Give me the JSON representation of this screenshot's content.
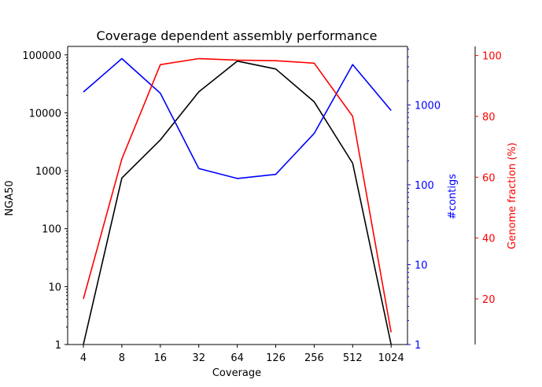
{
  "chart_data": {
    "type": "line",
    "title": "Coverage dependent assembly performance",
    "xlabel": "Coverage",
    "categories": [
      "4",
      "8",
      "16",
      "32",
      "64",
      "126",
      "256",
      "512",
      "1024"
    ],
    "axes": {
      "left": {
        "label": "NGA50",
        "scale": "log",
        "range": [
          1,
          140000
        ],
        "ticks": [
          1,
          10,
          100,
          1000,
          10000,
          100000
        ],
        "tick_labels": [
          "1",
          "10",
          "100",
          "1000",
          "10000",
          "100000"
        ],
        "color": "#000000"
      },
      "right": {
        "label": "#contigs",
        "scale": "log",
        "range": [
          1,
          5400
        ],
        "ticks": [
          1,
          10,
          100,
          1000
        ],
        "tick_labels": [
          "1",
          "10",
          "100",
          "1000"
        ],
        "color": "#0000ff"
      },
      "far_right": {
        "label": "Genome fraction (%)",
        "scale": "linear",
        "range": [
          5,
          103
        ],
        "ticks": [
          20,
          40,
          60,
          80,
          100
        ],
        "tick_labels": [
          "20",
          "40",
          "60",
          "80",
          "100"
        ],
        "color": "#ff0000"
      }
    },
    "series": [
      {
        "axis": "left",
        "color": "#000000",
        "values": [
          1,
          750,
          3400,
          23000,
          78000,
          57000,
          15500,
          1350,
          1
        ]
      },
      {
        "axis": "right",
        "color": "#0000ff",
        "values": [
          1450,
          3800,
          1400,
          160,
          120,
          135,
          440,
          3200,
          850
        ]
      },
      {
        "axis": "far_right",
        "color": "#ff0000",
        "values": [
          20,
          66,
          97,
          99,
          98.5,
          98.3,
          97.5,
          80,
          9
        ]
      }
    ],
    "grid": false,
    "legend": "none"
  }
}
